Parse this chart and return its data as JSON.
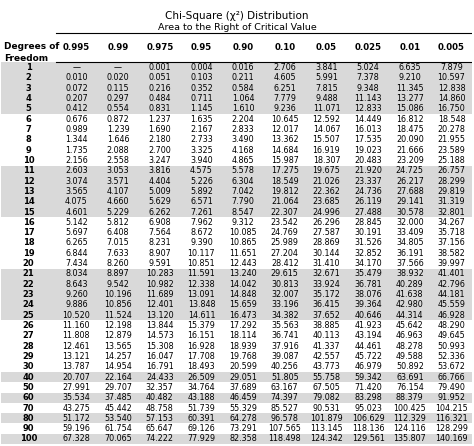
{
  "title1": "Chi-Square (χ²) Distribution",
  "title2": "Area to the Right of Critical Value",
  "col_headers": [
    "0.995",
    "0.99",
    "0.975",
    "0.95",
    "0.90",
    "0.10",
    "0.05",
    "0.025",
    "0.01",
    "0.005"
  ],
  "rows": [
    [
      "1",
      "—",
      "—",
      "0.001",
      "0.004",
      "0.016",
      "2.706",
      "3.841",
      "5.024",
      "6.635",
      "7.879"
    ],
    [
      "2",
      "0.010",
      "0.020",
      "0.051",
      "0.103",
      "0.211",
      "4.605",
      "5.991",
      "7.378",
      "9.210",
      "10.597"
    ],
    [
      "3",
      "0.072",
      "0.115",
      "0.216",
      "0.352",
      "0.584",
      "6.251",
      "7.815",
      "9.348",
      "11.345",
      "12.838"
    ],
    [
      "4",
      "0.207",
      "0.297",
      "0.484",
      "0.711",
      "1.064",
      "7.779",
      "9.488",
      "11.143",
      "13.277",
      "14.860"
    ],
    [
      "5",
      "0.412",
      "0.554",
      "0.831",
      "1.145",
      "1.610",
      "9.236",
      "11.071",
      "12.833",
      "15.086",
      "16.750"
    ],
    [
      "6",
      "0.676",
      "0.872",
      "1.237",
      "1.635",
      "2.204",
      "10.645",
      "12.592",
      "14.449",
      "16.812",
      "18.548"
    ],
    [
      "7",
      "0.989",
      "1.239",
      "1.690",
      "2.167",
      "2.833",
      "12.017",
      "14.067",
      "16.013",
      "18.475",
      "20.278"
    ],
    [
      "8",
      "1.344",
      "1.646",
      "2.180",
      "2.733",
      "3.490",
      "13.362",
      "15.507",
      "17.535",
      "20.090",
      "21.955"
    ],
    [
      "9",
      "1.735",
      "2.088",
      "2.700",
      "3.325",
      "4.168",
      "14.684",
      "16.919",
      "19.023",
      "21.666",
      "23.589"
    ],
    [
      "10",
      "2.156",
      "2.558",
      "3.247",
      "3.940",
      "4.865",
      "15.987",
      "18.307",
      "20.483",
      "23.209",
      "25.188"
    ],
    [
      "11",
      "2.603",
      "3.053",
      "3.816",
      "4.575",
      "5.578",
      "17.275",
      "19.675",
      "21.920",
      "24.725",
      "26.757"
    ],
    [
      "12",
      "3.074",
      "3.571",
      "4.404",
      "5.226",
      "6.304",
      "18.549",
      "21.026",
      "23.337",
      "26.217",
      "28.299"
    ],
    [
      "13",
      "3.565",
      "4.107",
      "5.009",
      "5.892",
      "7.042",
      "19.812",
      "22.362",
      "24.736",
      "27.688",
      "29.819"
    ],
    [
      "14",
      "4.075",
      "4.660",
      "5.629",
      "6.571",
      "7.790",
      "21.064",
      "23.685",
      "26.119",
      "29.141",
      "31.319"
    ],
    [
      "15",
      "4.601",
      "5.229",
      "6.262",
      "7.261",
      "8.547",
      "22.307",
      "24.996",
      "27.488",
      "30.578",
      "32.801"
    ],
    [
      "16",
      "5.142",
      "5.812",
      "6.908",
      "7.962",
      "9.312",
      "23.542",
      "26.296",
      "28.845",
      "32.000",
      "34.267"
    ],
    [
      "17",
      "5.697",
      "6.408",
      "7.564",
      "8.672",
      "10.085",
      "24.769",
      "27.587",
      "30.191",
      "33.409",
      "35.718"
    ],
    [
      "18",
      "6.265",
      "7.015",
      "8.231",
      "9.390",
      "10.865",
      "25.989",
      "28.869",
      "31.526",
      "34.805",
      "37.156"
    ],
    [
      "19",
      "6.844",
      "7.633",
      "8.907",
      "10.117",
      "11.651",
      "27.204",
      "30.144",
      "32.852",
      "36.191",
      "38.582"
    ],
    [
      "20",
      "7.434",
      "8.260",
      "9.591",
      "10.851",
      "12.443",
      "28.412",
      "31.410",
      "34.170",
      "37.566",
      "39.997"
    ],
    [
      "21",
      "8.034",
      "8.897",
      "10.283",
      "11.591",
      "13.240",
      "29.615",
      "32.671",
      "35.479",
      "38.932",
      "41.401"
    ],
    [
      "22",
      "8.643",
      "9.542",
      "10.982",
      "12.338",
      "14.042",
      "30.813",
      "33.924",
      "36.781",
      "40.289",
      "42.796"
    ],
    [
      "23",
      "9.260",
      "10.196",
      "11.689",
      "13.091",
      "14.848",
      "32.007",
      "35.172",
      "38.076",
      "41.638",
      "44.181"
    ],
    [
      "24",
      "9.886",
      "10.856",
      "12.401",
      "13.848",
      "15.659",
      "33.196",
      "36.415",
      "39.364",
      "42.980",
      "45.559"
    ],
    [
      "25",
      "10.520",
      "11.524",
      "13.120",
      "14.611",
      "16.473",
      "34.382",
      "37.652",
      "40.646",
      "44.314",
      "46.928"
    ],
    [
      "26",
      "11.160",
      "12.198",
      "13.844",
      "15.379",
      "17.292",
      "35.563",
      "38.885",
      "41.923",
      "45.642",
      "48.290"
    ],
    [
      "27",
      "11.808",
      "12.879",
      "14.573",
      "16.151",
      "18.114",
      "36.741",
      "40.113",
      "43.194",
      "46.963",
      "49.645"
    ],
    [
      "28",
      "12.461",
      "13.565",
      "15.308",
      "16.928",
      "18.939",
      "37.916",
      "41.337",
      "44.461",
      "48.278",
      "50.993"
    ],
    [
      "29",
      "13.121",
      "14.257",
      "16.047",
      "17.708",
      "19.768",
      "39.087",
      "42.557",
      "45.722",
      "49.588",
      "52.336"
    ],
    [
      "30",
      "13.787",
      "14.954",
      "16.791",
      "18.493",
      "20.599",
      "40.256",
      "43.773",
      "46.979",
      "50.892",
      "53.672"
    ],
    [
      "40",
      "20.707",
      "22.164",
      "24.433",
      "26.509",
      "29.051",
      "51.805",
      "55.758",
      "59.342",
      "63.691",
      "66.766"
    ],
    [
      "50",
      "27.991",
      "29.707",
      "32.357",
      "34.764",
      "37.689",
      "63.167",
      "67.505",
      "71.420",
      "76.154",
      "79.490"
    ],
    [
      "60",
      "35.534",
      "37.485",
      "40.482",
      "43.188",
      "46.459",
      "74.397",
      "79.082",
      "83.298",
      "88.379",
      "91.952"
    ],
    [
      "70",
      "43.275",
      "45.442",
      "48.758",
      "51.739",
      "55.329",
      "85.527",
      "90.531",
      "95.023",
      "100.425",
      "104.215"
    ],
    [
      "80",
      "51.172",
      "53.540",
      "57.153",
      "60.391",
      "64.278",
      "96.578",
      "101.879",
      "106.629",
      "112.329",
      "116.321"
    ],
    [
      "90",
      "59.196",
      "61.754",
      "65.647",
      "69.126",
      "73.291",
      "107.565",
      "113.145",
      "118.136",
      "124.116",
      "128.299"
    ],
    [
      "100",
      "67.328",
      "70.065",
      "74.222",
      "77.929",
      "82.358",
      "118.498",
      "124.342",
      "129.561",
      "135.807",
      "140.169"
    ]
  ],
  "shaded_row_indices": [
    0,
    1,
    2,
    3,
    4,
    10,
    11,
    12,
    13,
    14,
    20,
    21,
    22,
    23,
    24,
    30,
    32,
    34,
    36
  ],
  "shade_color": "#d9d9d9",
  "bg_color": "#ffffff",
  "title1_fontsize": 7.5,
  "title2_fontsize": 6.8,
  "header_fontsize": 6.2,
  "data_fontsize": 5.8,
  "df_fontsize": 6.0
}
